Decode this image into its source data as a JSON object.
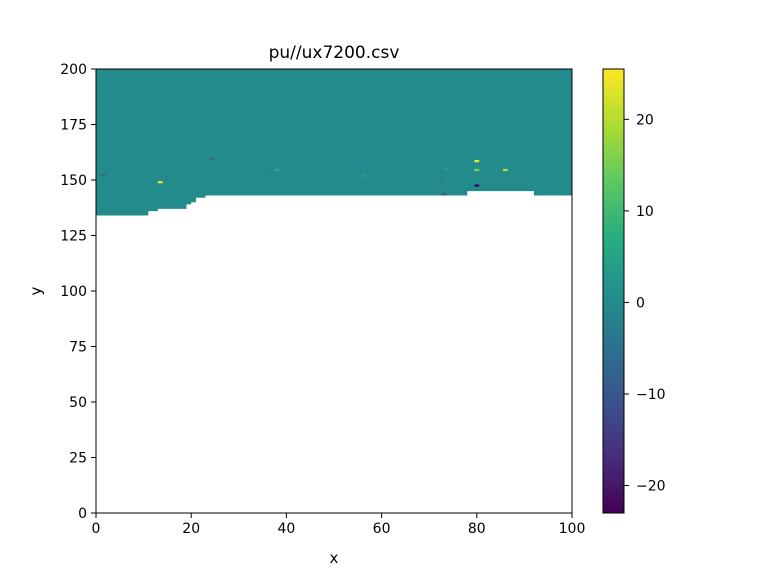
{
  "chart_data": {
    "type": "heatmap",
    "title": "pu//ux7200.csv",
    "xlabel": "x",
    "ylabel": "y",
    "xlim": [
      0,
      100
    ],
    "ylim": [
      0,
      200
    ],
    "xticks": [
      0,
      20,
      40,
      60,
      80,
      100
    ],
    "yticks": [
      0,
      25,
      50,
      75,
      100,
      125,
      150,
      175,
      200
    ],
    "colormap": "viridis",
    "colorbar": {
      "range": [
        -23,
        25.5
      ],
      "ticks": [
        -20,
        -10,
        0,
        10,
        20
      ]
    },
    "background_value": 0,
    "filled_lower_boundary": [
      {
        "x0": 0,
        "x1": 11,
        "y": 134
      },
      {
        "x0": 11,
        "x1": 13,
        "y": 136
      },
      {
        "x0": 13,
        "x1": 19,
        "y": 137
      },
      {
        "x0": 19,
        "x1": 20,
        "y": 139
      },
      {
        "x0": 20,
        "x1": 21,
        "y": 140
      },
      {
        "x0": 21,
        "x1": 23,
        "y": 142
      },
      {
        "x0": 23,
        "x1": 78,
        "y": 143
      },
      {
        "x0": 78,
        "x1": 92,
        "y": 145
      },
      {
        "x0": 92,
        "x1": 100,
        "y": 143
      }
    ],
    "anomalies": [
      {
        "x": 13,
        "y": 149,
        "w": 1,
        "h": 1,
        "value": 24
      },
      {
        "x": 79.5,
        "y": 158.5,
        "w": 1,
        "h": 1,
        "value": 25
      },
      {
        "x": 79.5,
        "y": 154.5,
        "w": 1,
        "h": 1,
        "value": 16
      },
      {
        "x": 79.5,
        "y": 147.5,
        "w": 1,
        "h": 1,
        "value": -23
      },
      {
        "x": 85.5,
        "y": 154.5,
        "w": 1,
        "h": 1,
        "value": 20
      },
      {
        "x": 37.5,
        "y": 154.5,
        "w": 1,
        "h": 1,
        "value": 7
      },
      {
        "x": 1,
        "y": 152,
        "w": 1,
        "h": 1,
        "value": -8
      },
      {
        "x": 24,
        "y": 159.5,
        "w": 1,
        "h": 1,
        "value": -6
      },
      {
        "x": 35,
        "y": 154.5,
        "w": 1,
        "h": 1,
        "value": -3
      },
      {
        "x": 56,
        "y": 152,
        "w": 1,
        "h": 1,
        "value": 6
      },
      {
        "x": 72,
        "y": 149.5,
        "w": 1,
        "h": 1,
        "value": -4
      },
      {
        "x": 72.5,
        "y": 143.5,
        "w": 1,
        "h": 1,
        "value": -7
      },
      {
        "x": 73,
        "y": 155,
        "w": 1,
        "h": 1,
        "value": 4
      }
    ]
  }
}
